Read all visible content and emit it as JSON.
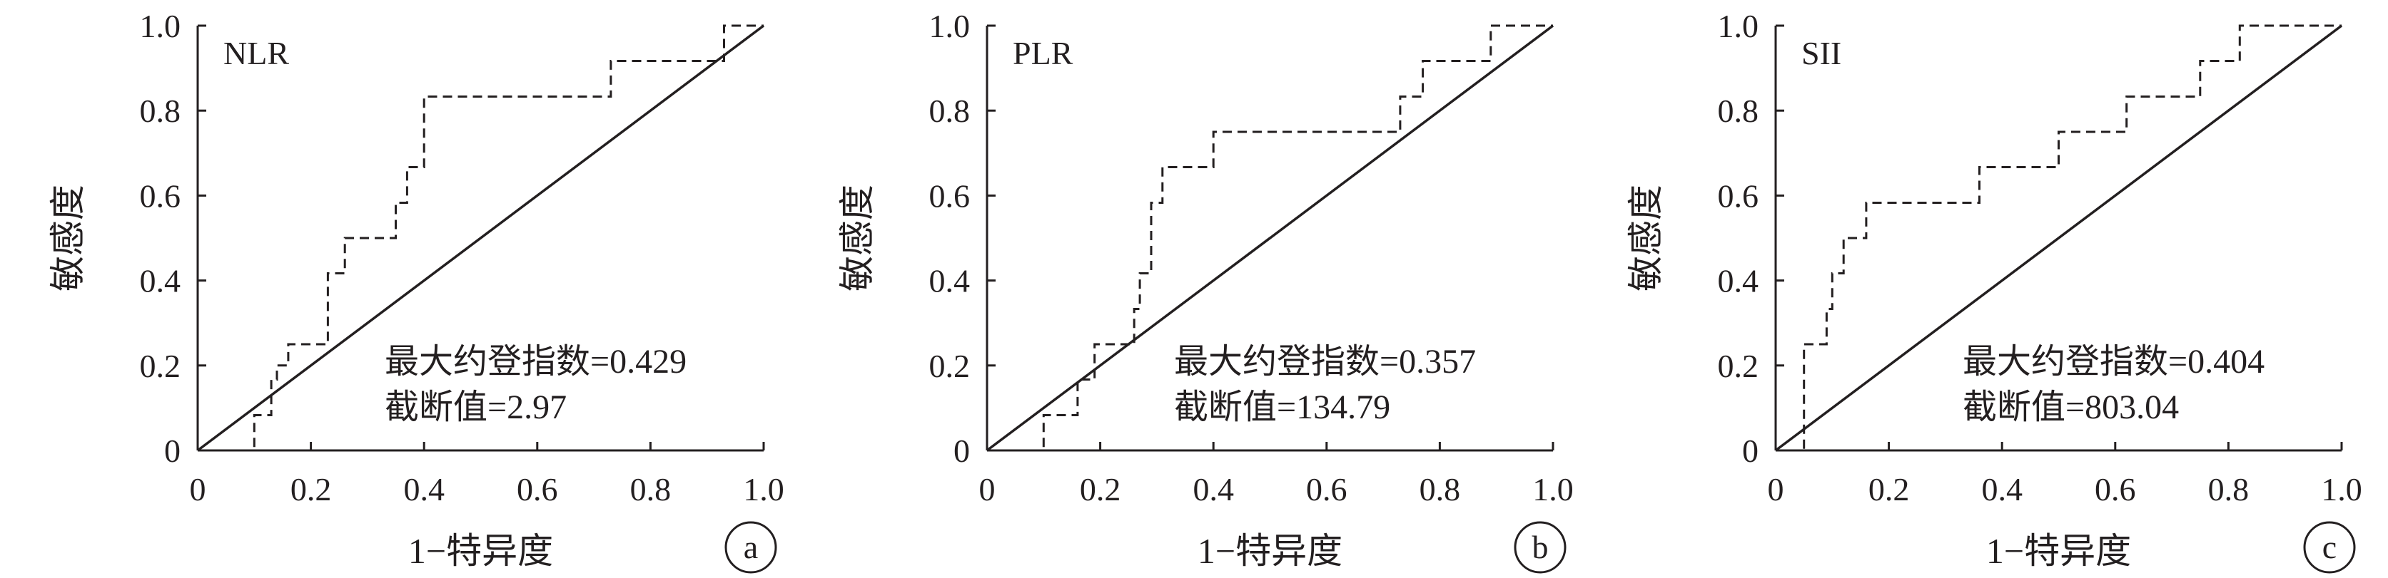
{
  "chart_data": [
    {
      "type": "line",
      "title": "NLR",
      "panel_label": "a",
      "xlabel": "1−特异度",
      "ylabel": "敏感度",
      "xlim": [
        0,
        1.0
      ],
      "ylim": [
        0,
        1.0
      ],
      "x_tick_labels": [
        "0",
        "0.2",
        "0.4",
        "0.6",
        "0.8",
        "1.0"
      ],
      "y_tick_labels": [
        "0",
        "0.2",
        "0.4",
        "0.6",
        "0.8",
        "1.0"
      ],
      "grid": false,
      "annotations": [
        "最大约登指数=0.429",
        "截断值=2.97"
      ],
      "series": [
        {
          "style": "dashed",
          "x": [
            0,
            0.1,
            0.1,
            0.13,
            0.13,
            0.14,
            0.14,
            0.16,
            0.16,
            0.23,
            0.23,
            0.26,
            0.26,
            0.35,
            0.35,
            0.37,
            0.37,
            0.4,
            0.4,
            0.73,
            0.73,
            0.93,
            0.93,
            1.0
          ],
          "y": [
            0,
            0,
            0.083,
            0.083,
            0.167,
            0.167,
            0.2,
            0.2,
            0.25,
            0.25,
            0.417,
            0.417,
            0.5,
            0.5,
            0.583,
            0.583,
            0.667,
            0.667,
            0.833,
            0.833,
            0.917,
            0.917,
            1.0,
            1.0
          ]
        },
        {
          "style": "solid",
          "x": [
            0,
            1.0
          ],
          "y": [
            0,
            1.0
          ]
        }
      ]
    },
    {
      "type": "line",
      "title": "PLR",
      "panel_label": "b",
      "xlabel": "1−特异度",
      "ylabel": "敏感度",
      "xlim": [
        0,
        1.0
      ],
      "ylim": [
        0,
        1.0
      ],
      "x_tick_labels": [
        "0",
        "0.2",
        "0.4",
        "0.6",
        "0.8",
        "1.0"
      ],
      "y_tick_labels": [
        "0",
        "0.2",
        "0.4",
        "0.6",
        "0.8",
        "1.0"
      ],
      "grid": false,
      "annotations": [
        "最大约登指数=0.357",
        "截断值=134.79"
      ],
      "series": [
        {
          "style": "dashed",
          "x": [
            0,
            0.1,
            0.1,
            0.16,
            0.16,
            0.19,
            0.19,
            0.26,
            0.26,
            0.27,
            0.27,
            0.29,
            0.29,
            0.31,
            0.31,
            0.4,
            0.4,
            0.73,
            0.73,
            0.77,
            0.77,
            0.89,
            0.89,
            1.0
          ],
          "y": [
            0,
            0,
            0.083,
            0.083,
            0.167,
            0.167,
            0.25,
            0.25,
            0.333,
            0.333,
            0.417,
            0.417,
            0.583,
            0.583,
            0.667,
            0.667,
            0.75,
            0.75,
            0.833,
            0.833,
            0.917,
            0.917,
            1.0,
            1.0
          ]
        },
        {
          "style": "solid",
          "x": [
            0,
            1.0
          ],
          "y": [
            0,
            1.0
          ]
        }
      ]
    },
    {
      "type": "line",
      "title": "SII",
      "panel_label": "c",
      "xlabel": "1−特异度",
      "ylabel": "敏感度",
      "xlim": [
        0,
        1.0
      ],
      "ylim": [
        0,
        1.0
      ],
      "x_tick_labels": [
        "0",
        "0.2",
        "0.4",
        "0.6",
        "0.8",
        "1.0"
      ],
      "y_tick_labels": [
        "0",
        "0.2",
        "0.4",
        "0.6",
        "0.8",
        "1.0"
      ],
      "grid": false,
      "annotations": [
        "最大约登指数=0.404",
        "截断值=803.04"
      ],
      "series": [
        {
          "style": "dashed",
          "x": [
            0,
            0.05,
            0.05,
            0.09,
            0.09,
            0.1,
            0.1,
            0.12,
            0.12,
            0.16,
            0.16,
            0.18,
            0.18,
            0.36,
            0.36,
            0.5,
            0.5,
            0.62,
            0.62,
            0.75,
            0.75,
            0.82,
            0.82,
            1.0
          ],
          "y": [
            0,
            0,
            0.25,
            0.25,
            0.333,
            0.333,
            0.417,
            0.417,
            0.5,
            0.5,
            0.583,
            0.583,
            0.583,
            0.583,
            0.667,
            0.667,
            0.75,
            0.75,
            0.833,
            0.833,
            0.917,
            0.917,
            1.0,
            1.0
          ]
        },
        {
          "style": "solid",
          "x": [
            0,
            1.0
          ],
          "y": [
            0,
            1.0
          ]
        }
      ]
    }
  ]
}
